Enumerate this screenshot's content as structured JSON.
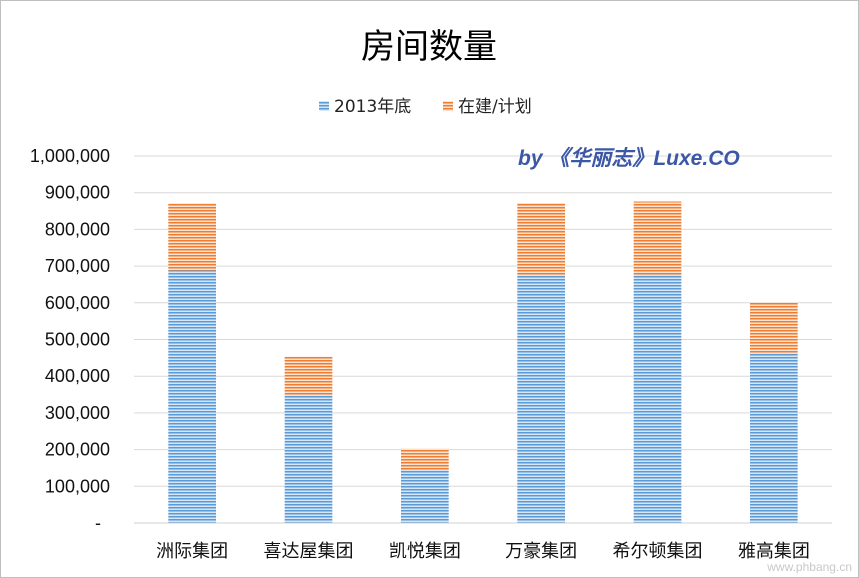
{
  "chart_data": {
    "type": "bar",
    "stacked": true,
    "title": "房间数量",
    "categories": [
      "洲际集团",
      "喜达屋集团",
      "凯悦集团",
      "万豪集团",
      "希尔顿集团",
      "雅高集团"
    ],
    "series": [
      {
        "name": "2013年底",
        "color": "#5b9bd5",
        "values": [
          688000,
          348000,
          147000,
          675000,
          677000,
          463000
        ]
      },
      {
        "name": "在建/计划",
        "color": "#ed7d31",
        "values": [
          183000,
          105000,
          56000,
          197000,
          199000,
          138000
        ]
      }
    ],
    "ylim": [
      0,
      1000000
    ],
    "y_ticks": [
      "-",
      "100,000",
      "200,000",
      "300,000",
      "400,000",
      "500,000",
      "600,000",
      "700,000",
      "800,000",
      "900,000",
      "1,000,000"
    ],
    "grid": true,
    "legend_position": "top"
  },
  "annotation": "by 《华丽志》Luxe.CO",
  "watermark": "www.phbang.cn"
}
